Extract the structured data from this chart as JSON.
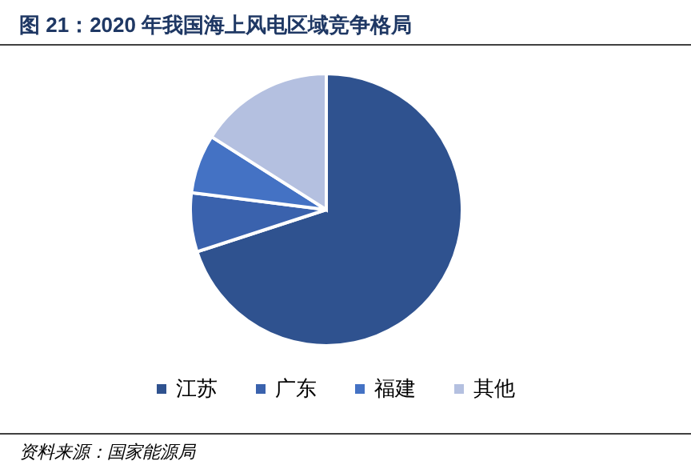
{
  "chart_data": {
    "type": "pie",
    "title": "图 21：2020 年我国海上风电区域竞争格局",
    "categories": [
      "江苏",
      "广东",
      "福建",
      "其他"
    ],
    "values": [
      70,
      7,
      7,
      16
    ],
    "colors": [
      "#2f528f",
      "#3a62ad",
      "#4472c4",
      "#b4c0e0"
    ],
    "legend": "bottom",
    "annotations": [
      "资料来源：国家能源局"
    ]
  }
}
